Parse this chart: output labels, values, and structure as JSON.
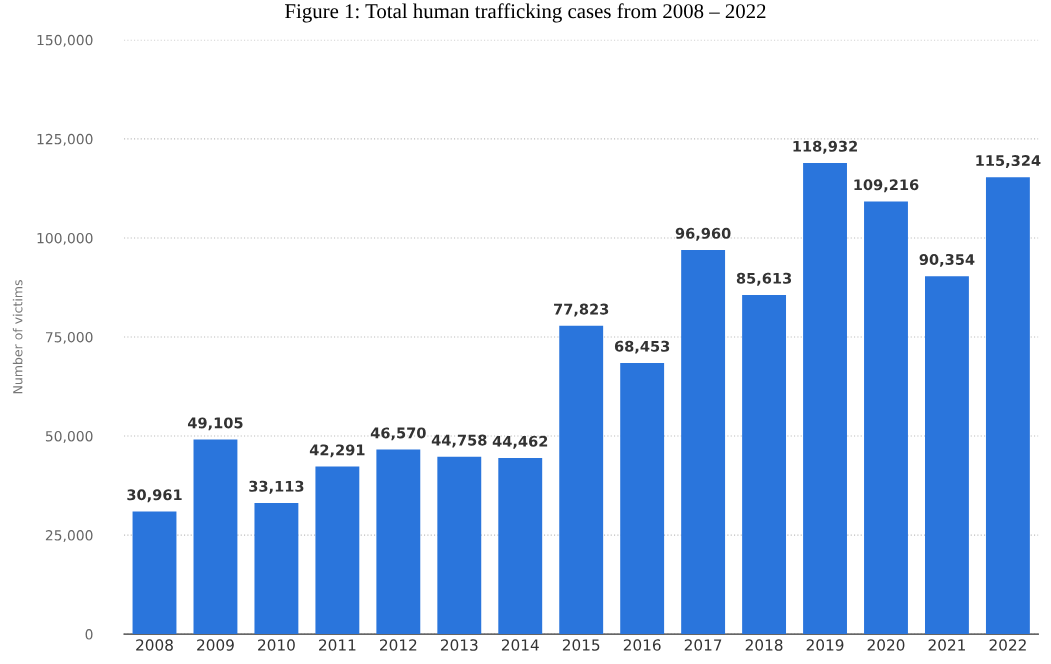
{
  "chart_data": {
    "type": "bar",
    "title": "Figure 1: Total human trafficking cases from 2008 – 2022",
    "ylabel": "Number of victims",
    "categories": [
      "2008",
      "2009",
      "2010",
      "2011",
      "2012",
      "2013",
      "2014",
      "2015",
      "2016",
      "2017",
      "2018",
      "2019",
      "2020",
      "2021",
      "2022"
    ],
    "values": [
      30961,
      49105,
      33113,
      42291,
      46570,
      44758,
      44462,
      77823,
      68453,
      96960,
      85613,
      118932,
      109216,
      90354,
      115324
    ],
    "color": "#2a75dc",
    "ylim": [
      0,
      150000
    ],
    "yticks": [
      0,
      {
        "value": 25000,
        "label": "25,000"
      },
      {
        "value": 50000,
        "label": "50,000"
      },
      {
        "value": 75000,
        "label": "75,000"
      },
      {
        "value": 100000,
        "label": "100,000"
      },
      {
        "value": 125000,
        "label": "125,000"
      },
      {
        "value": 150000,
        "label": "150,000"
      }
    ],
    "value_labels": [
      "30,961",
      "49,105",
      "33,113",
      "42,291",
      "46,570",
      "44,758",
      "44,462",
      "77,823",
      "68,453",
      "96,960",
      "85,613",
      "118,932",
      "109,216",
      "90,354",
      "115,324"
    ],
    "grid": "y"
  }
}
